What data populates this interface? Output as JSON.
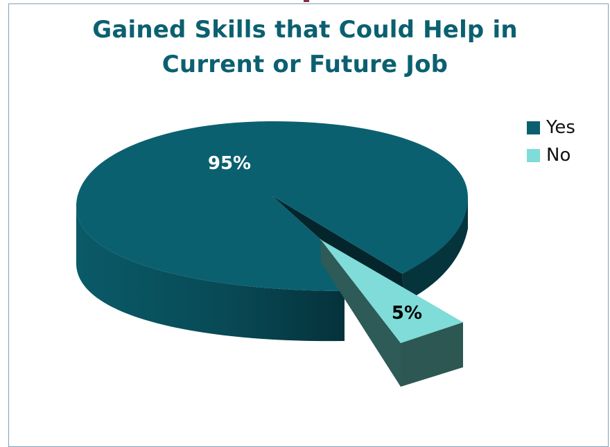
{
  "chart_data": {
    "type": "pie",
    "title_lines": [
      "Gained Skills that Could Help in",
      "Current or Future Job"
    ],
    "categories": [
      "Yes",
      "No"
    ],
    "values": [
      95,
      5
    ],
    "data_labels": [
      "95%",
      "5%"
    ],
    "colors": [
      "#0b6070",
      "#7fdcd8"
    ],
    "legend_position": "right",
    "style": "3d-exploded"
  }
}
